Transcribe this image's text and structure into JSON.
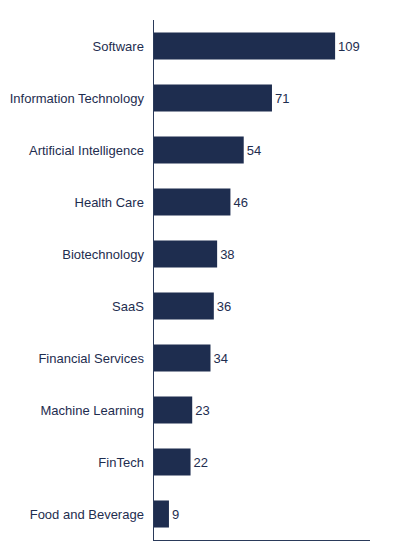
{
  "chart_data": {
    "type": "bar",
    "orientation": "horizontal",
    "categories": [
      "Food and Beverage",
      "FinTech",
      "Machine Learning",
      "Financial Services",
      "SaaS",
      "Biotechnology",
      "Health Care",
      "Artificial Intelligence",
      "Information Technology",
      "Software"
    ],
    "values": [
      9,
      22,
      23,
      34,
      36,
      38,
      46,
      54,
      71,
      109
    ],
    "color": "#1e2d4f",
    "xlim": [
      0,
      130
    ],
    "data_labels": true,
    "tick_labels": "y",
    "grid": false
  }
}
